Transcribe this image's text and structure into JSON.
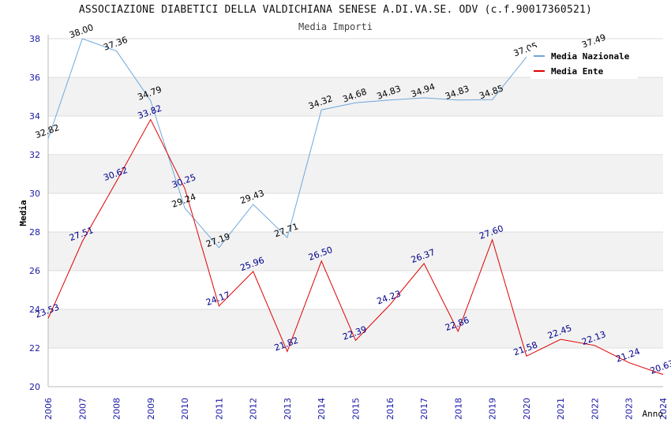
{
  "chart_data": {
    "type": "line",
    "title": "ASSOCIAZIONE DIABETICI DELLA VALDICHIANA SENESE A.DI.VA.SE. ODV (c.f.90017360521)",
    "subtitle": "Media Importi",
    "xlabel": "Anno",
    "ylabel": "Media",
    "ylim": [
      20,
      38
    ],
    "yticks": [
      "20",
      "22",
      "24",
      "26",
      "28",
      "30",
      "32",
      "34",
      "36",
      "38"
    ],
    "categories": [
      "2006",
      "2007",
      "2008",
      "2009",
      "2010",
      "2011",
      "2012",
      "2013",
      "2014",
      "2015",
      "2016",
      "2017",
      "2018",
      "2019",
      "2020",
      "2021",
      "2022",
      "2023",
      "2024"
    ],
    "series": [
      {
        "name": "Media Nazionale",
        "color": "#6fa8dc",
        "label_color": "#000000",
        "values": [
          32.82,
          38.0,
          37.36,
          34.79,
          29.24,
          27.19,
          29.43,
          27.71,
          34.32,
          34.68,
          34.83,
          34.94,
          34.83,
          34.85,
          37.05,
          null,
          37.49,
          null,
          null
        ],
        "labels": [
          "32.82",
          "38.00",
          "37.36",
          "34.79",
          "29.24",
          "27.19",
          "29.43",
          "27.71",
          "34.32",
          "34.68",
          "34.83",
          "34.94",
          "34.83",
          "34.85",
          "37.05",
          null,
          "37.49",
          null,
          null
        ]
      },
      {
        "name": "Media Ente",
        "color": "#e00000",
        "label_color": "#00008b",
        "values": [
          23.53,
          27.51,
          30.62,
          33.82,
          30.25,
          24.17,
          25.96,
          21.82,
          26.5,
          22.39,
          24.23,
          26.37,
          22.86,
          27.6,
          21.58,
          22.45,
          22.13,
          21.24,
          20.63
        ],
        "labels": [
          "23.53",
          "27.51",
          "30.62",
          "33.82",
          "30.25",
          "24.17",
          "25.96",
          "21.82",
          "26.50",
          "22.39",
          "24.23",
          "26.37",
          "22.86",
          "27.60",
          "21.58",
          "22.45",
          "22.13",
          "21.24",
          "20.63"
        ]
      }
    ],
    "grid": true,
    "legend": "top-right"
  }
}
